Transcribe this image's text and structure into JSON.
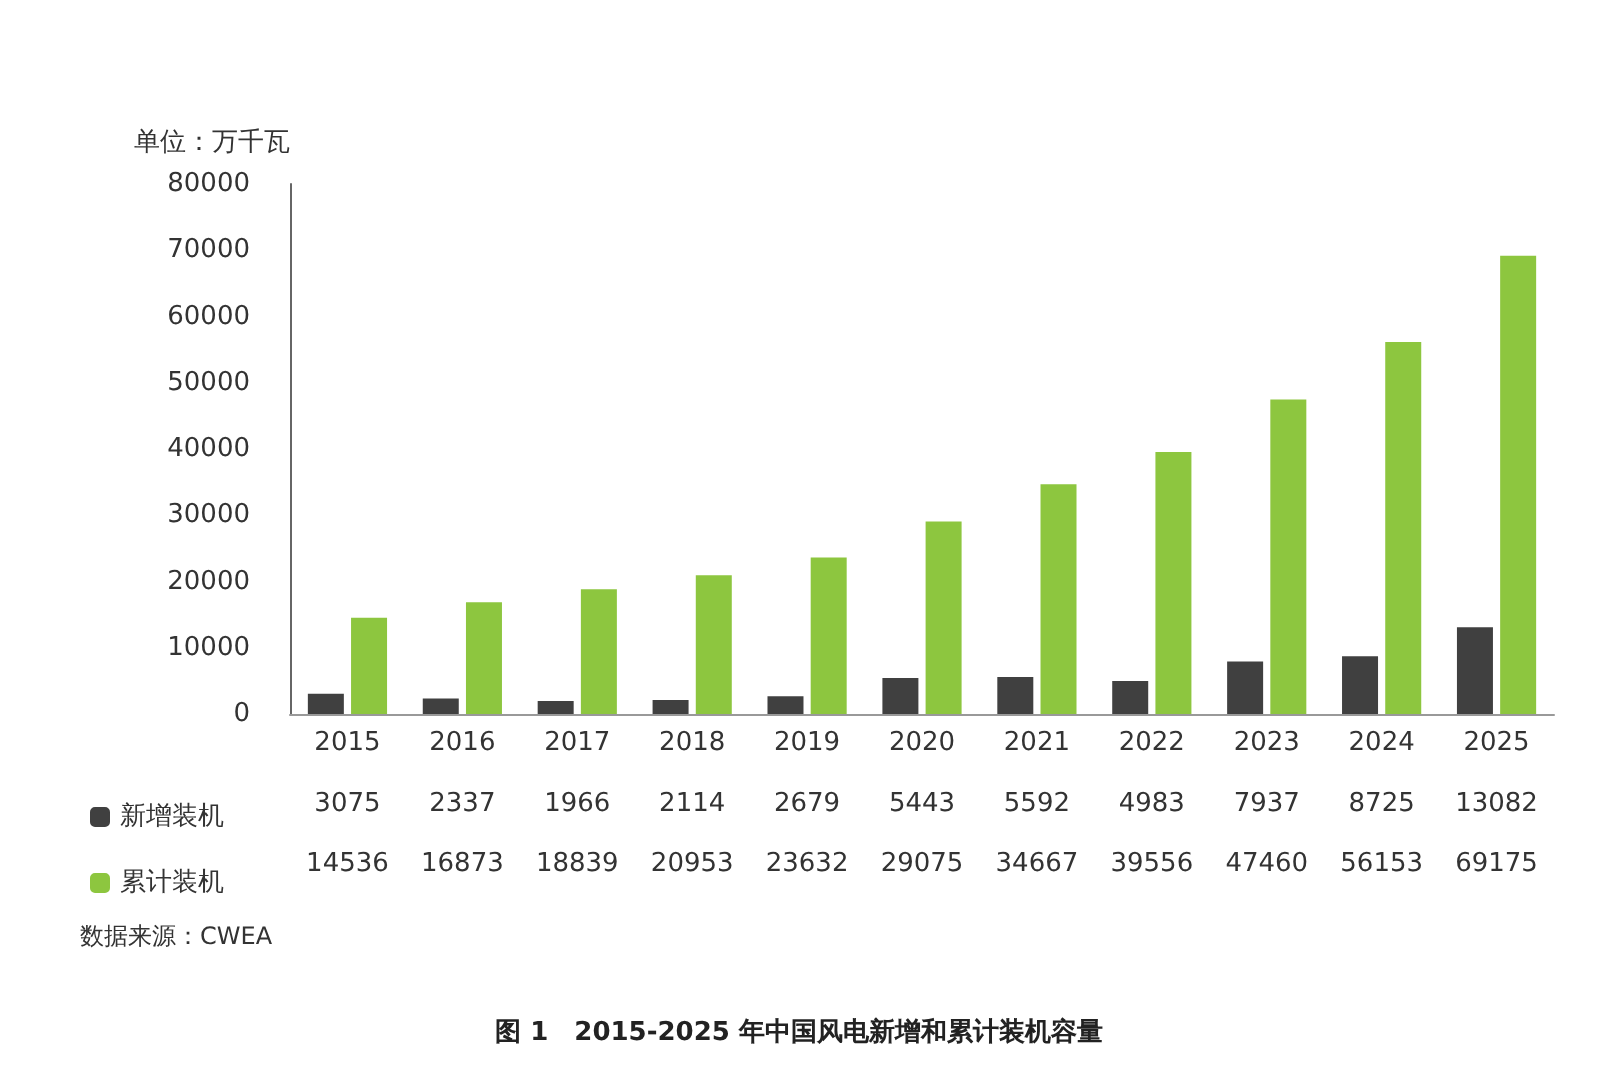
{
  "chart_data": {
    "type": "bar",
    "title": "图 1　2015-2025 年中国风电新增和累计装机容量",
    "ylabel": "单位：万千瓦",
    "categories": [
      "2015",
      "2016",
      "2017",
      "2018",
      "2019",
      "2020",
      "2021",
      "2022",
      "2023",
      "2024",
      "2025"
    ],
    "series": [
      {
        "name": "新增装机",
        "color": "#404040",
        "values": [
          3075,
          2337,
          1966,
          2114,
          2679,
          5443,
          5592,
          4983,
          7937,
          8725,
          13082
        ]
      },
      {
        "name": "累计装机",
        "color": "#8dc63f",
        "values": [
          14536,
          16873,
          18839,
          20953,
          23632,
          29075,
          34667,
          39556,
          47460,
          56153,
          69175
        ]
      }
    ],
    "ylim": [
      0,
      80000
    ],
    "yticks": [
      0,
      10000,
      20000,
      30000,
      40000,
      50000,
      60000,
      70000,
      80000
    ],
    "grid": false,
    "legend": "bottom left",
    "data_labels": true,
    "annotations": [
      "数据来源：CWEA"
    ]
  }
}
